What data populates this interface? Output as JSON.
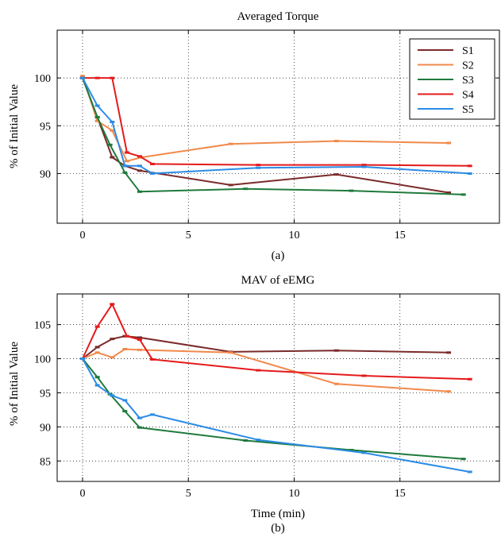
{
  "colors": {
    "S1": "#7b2a2a",
    "S2": "#f08a4b",
    "S3": "#1f7a3c",
    "S4": "#e41a1c",
    "S5": "#2b8ce6"
  },
  "chart_data": [
    {
      "type": "line",
      "title": "Averaged Torque",
      "ylabel": "% of Initial Value",
      "xlabel": "",
      "caption": "(a)",
      "xlim": [
        -1.2,
        19.7
      ],
      "ylim": [
        84.8,
        105
      ],
      "xticks": [
        0,
        5,
        10,
        15
      ],
      "yticks": [
        90,
        95,
        100
      ],
      "grid": true,
      "legend": "top-right",
      "series": [
        {
          "name": "S1",
          "x": [
            0,
            0.7,
            1.4,
            2.0,
            2.7,
            7.0,
            12.0,
            17.3
          ],
          "y": [
            100,
            95.9,
            91.7,
            90.8,
            90.3,
            88.8,
            89.9,
            88.0
          ]
        },
        {
          "name": "S2",
          "x": [
            0,
            0.7,
            1.4,
            2.1,
            2.8,
            7.0,
            12.0,
            17.3
          ],
          "y": [
            100.2,
            95.5,
            94.5,
            91.3,
            91.7,
            93.1,
            93.4,
            93.2
          ]
        },
        {
          "name": "S3",
          "x": [
            0,
            0.7,
            1.3,
            2.0,
            2.7,
            7.7,
            12.7,
            18.0
          ],
          "y": [
            100,
            95.9,
            93.0,
            90.1,
            88.1,
            88.4,
            88.2,
            87.8
          ]
        },
        {
          "name": "S4",
          "x": [
            0,
            0.7,
            1.4,
            2.1,
            2.7,
            3.3,
            8.3,
            13.3,
            18.3
          ],
          "y": [
            100,
            100,
            100,
            92.2,
            91.8,
            91.0,
            90.9,
            90.9,
            90.8
          ]
        },
        {
          "name": "S5",
          "x": [
            0,
            0.7,
            1.4,
            2.0,
            2.7,
            3.3,
            8.3,
            13.3,
            18.3
          ],
          "y": [
            100,
            97.1,
            95.4,
            90.8,
            90.8,
            90.0,
            90.6,
            90.7,
            90.0
          ]
        }
      ]
    },
    {
      "type": "line",
      "title": "MAV of eEMG",
      "ylabel": "% of Initial Value",
      "xlabel": "Time (min)",
      "caption": "(b)",
      "xlim": [
        -1.2,
        19.7
      ],
      "ylim": [
        82.0,
        109.5
      ],
      "xticks": [
        0,
        5,
        10,
        15
      ],
      "yticks": [
        85,
        90,
        95,
        100,
        105
      ],
      "grid": true,
      "series": [
        {
          "name": "S1",
          "x": [
            0,
            0.7,
            1.4,
            2.0,
            2.7,
            7.0,
            12.0,
            17.3
          ],
          "y": [
            100,
            101.7,
            102.9,
            103.3,
            103.1,
            101.0,
            101.2,
            100.9
          ]
        },
        {
          "name": "S2",
          "x": [
            0,
            0.7,
            1.4,
            2.0,
            2.7,
            7.0,
            12.0,
            17.3
          ],
          "y": [
            100,
            100.9,
            100.2,
            101.4,
            101.3,
            100.9,
            96.3,
            95.2
          ]
        },
        {
          "name": "S3",
          "x": [
            0,
            0.7,
            1.3,
            2.0,
            2.7,
            7.7,
            12.7,
            18.0
          ],
          "y": [
            100,
            97.3,
            94.8,
            92.3,
            89.9,
            88.0,
            86.6,
            85.3
          ]
        },
        {
          "name": "S4",
          "x": [
            0,
            0.7,
            1.4,
            2.1,
            2.7,
            3.3,
            8.3,
            13.3,
            18.3
          ],
          "y": [
            100,
            104.7,
            108.0,
            103.3,
            102.8,
            99.9,
            98.3,
            97.5,
            97.0
          ]
        },
        {
          "name": "S5",
          "x": [
            0,
            0.7,
            1.4,
            2.0,
            2.7,
            3.3,
            8.3,
            13.3,
            18.3
          ],
          "y": [
            100,
            96.1,
            94.6,
            93.9,
            91.3,
            91.8,
            88.1,
            86.2,
            83.4
          ]
        }
      ]
    }
  ]
}
